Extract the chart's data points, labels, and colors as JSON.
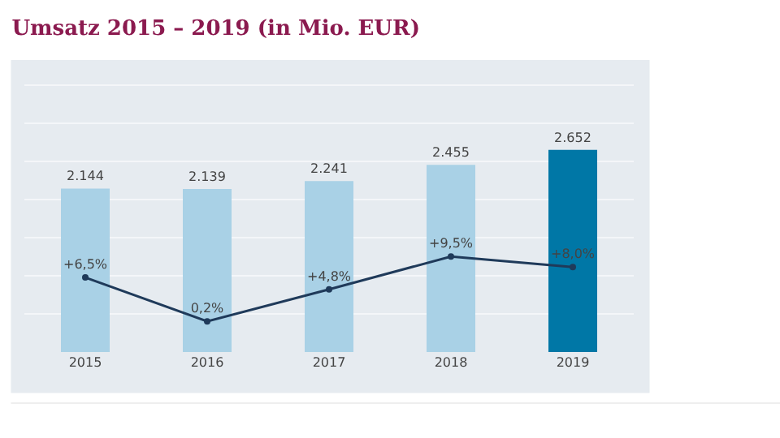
{
  "chart_data": {
    "type": "bar",
    "title": "Umsatz 2015 – 2019 (in Mio. EUR)",
    "categories": [
      "2015",
      "2016",
      "2017",
      "2018",
      "2019"
    ],
    "ylim": [
      0,
      3830
    ],
    "y2lim": [
      -4.2,
      37.7
    ],
    "grid": "y",
    "legend": false,
    "tick_labels": "x",
    "series": [
      {
        "values": [
          2144,
          2139,
          2241,
          2455,
          2652
        ],
        "colors": [
          "#a9d1e6",
          "#a9d1e6",
          "#a9d1e6",
          "#a9d1e6",
          "#0077a6"
        ],
        "value_labels": [
          "2.144",
          "2.139",
          "2.241",
          "2.455",
          "2.652"
        ]
      },
      {
        "type": "line",
        "axis": "y2",
        "color": "#1f3a5a",
        "marker": "circle",
        "line_style": "solid",
        "values": [
          6.5,
          0.2,
          4.8,
          9.5,
          8.0
        ],
        "value_labels": [
          "+6,5%",
          "0,2%",
          "+4,8%",
          "+9,5%",
          "+8,0%"
        ]
      }
    ]
  }
}
